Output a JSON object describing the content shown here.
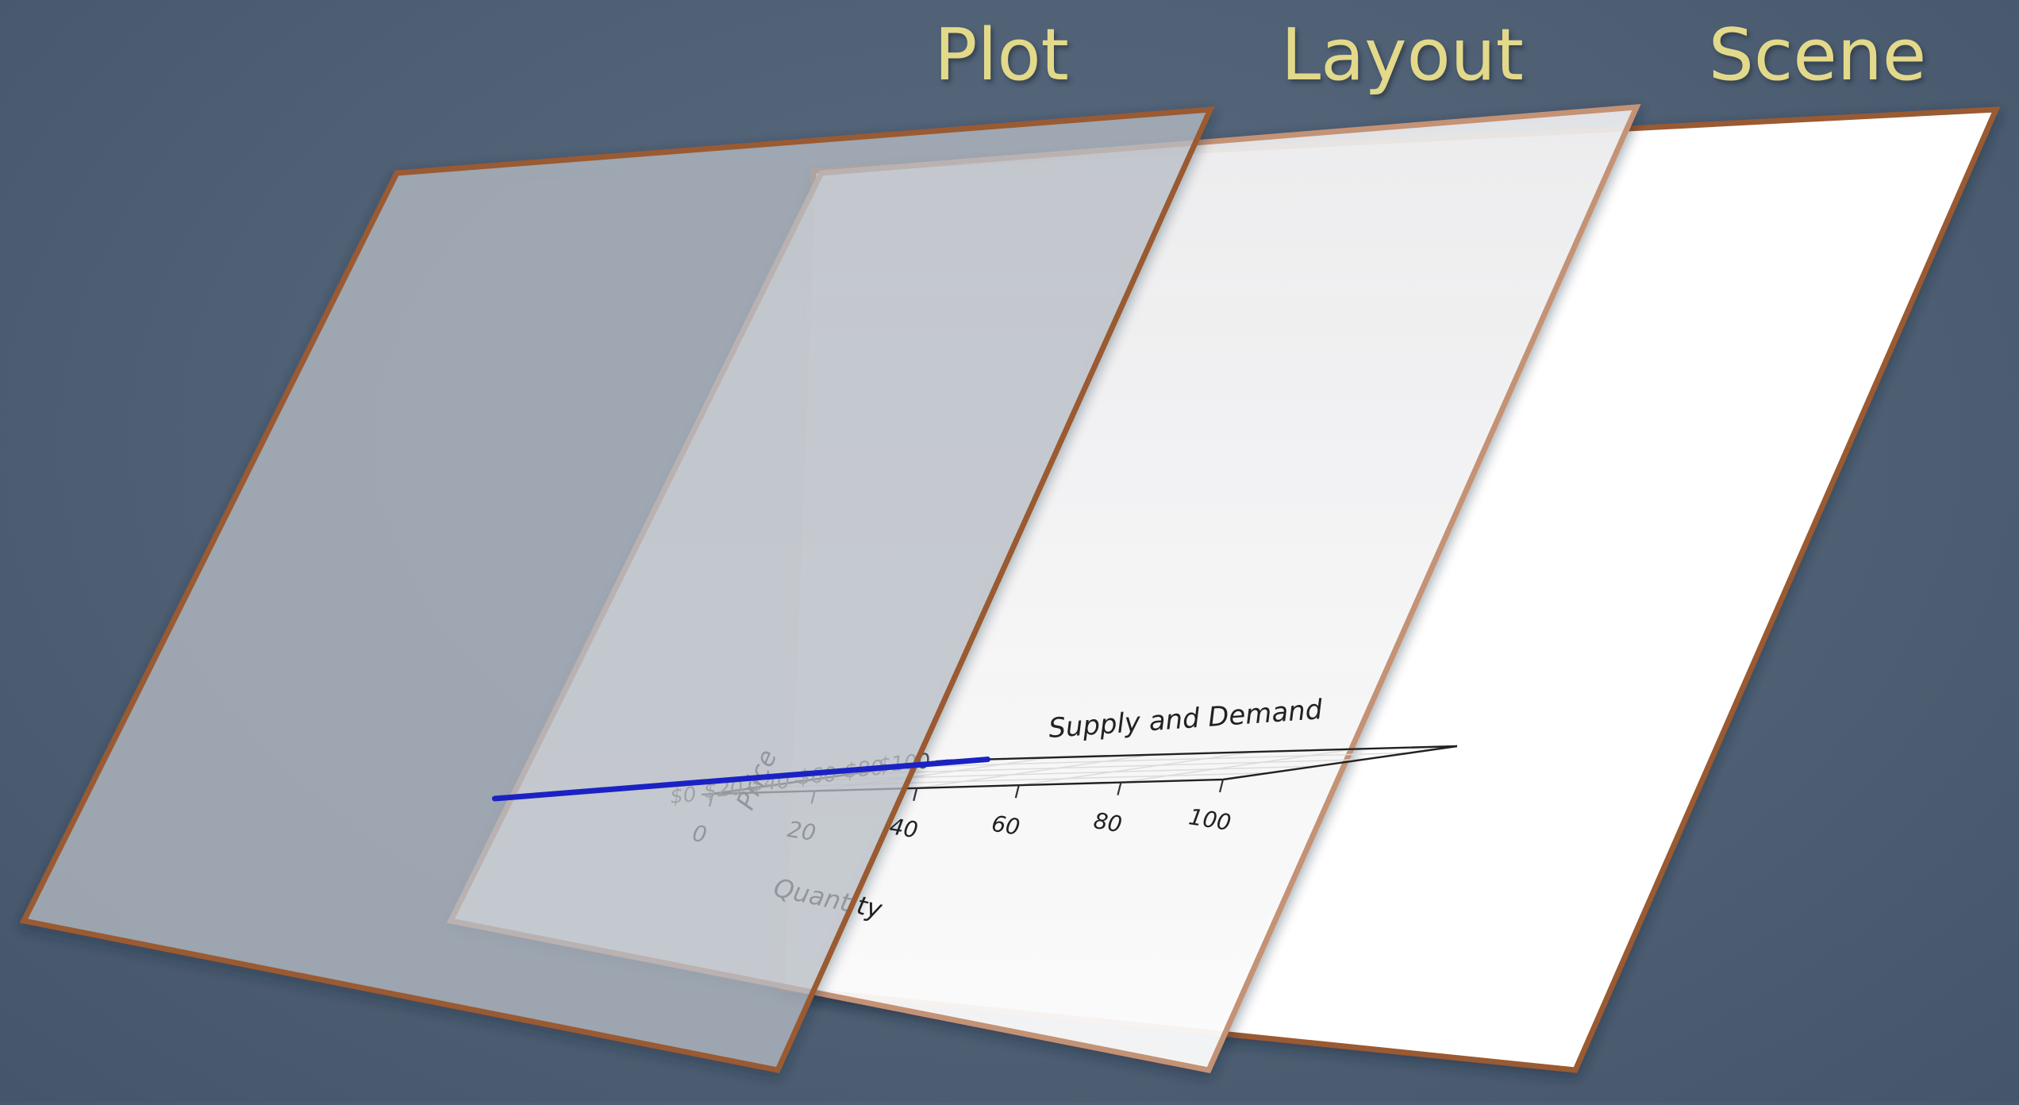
{
  "layers": {
    "plot": {
      "title": "Plot"
    },
    "layout": {
      "title": "Layout"
    },
    "scene": {
      "title": "Scene"
    }
  },
  "colors": {
    "background": "#4f6074",
    "title_text": "#e3d98a",
    "panel_border": "#9a5a32",
    "plot_line": "#1b22c4"
  },
  "chart_data": {
    "type": "line",
    "title": "Supply and Demand",
    "xlabel": "Quantity",
    "ylabel": "Price",
    "xlim": [
      0,
      100
    ],
    "ylim": [
      0,
      100
    ],
    "x_ticks": [
      0,
      20,
      40,
      60,
      80,
      100
    ],
    "x_tick_labels": [
      "0",
      "20",
      "40",
      "60",
      "80",
      "100"
    ],
    "y_ticks": [
      0,
      20,
      40,
      60,
      80,
      100
    ],
    "y_tick_labels": [
      "$0",
      "$20",
      "$40",
      "$60",
      "$80",
      "$100"
    ],
    "grid": true,
    "series": [
      {
        "x": [
          -45,
          8
        ],
        "y": [
          5,
          100
        ],
        "color": "#1b22c4"
      }
    ]
  }
}
